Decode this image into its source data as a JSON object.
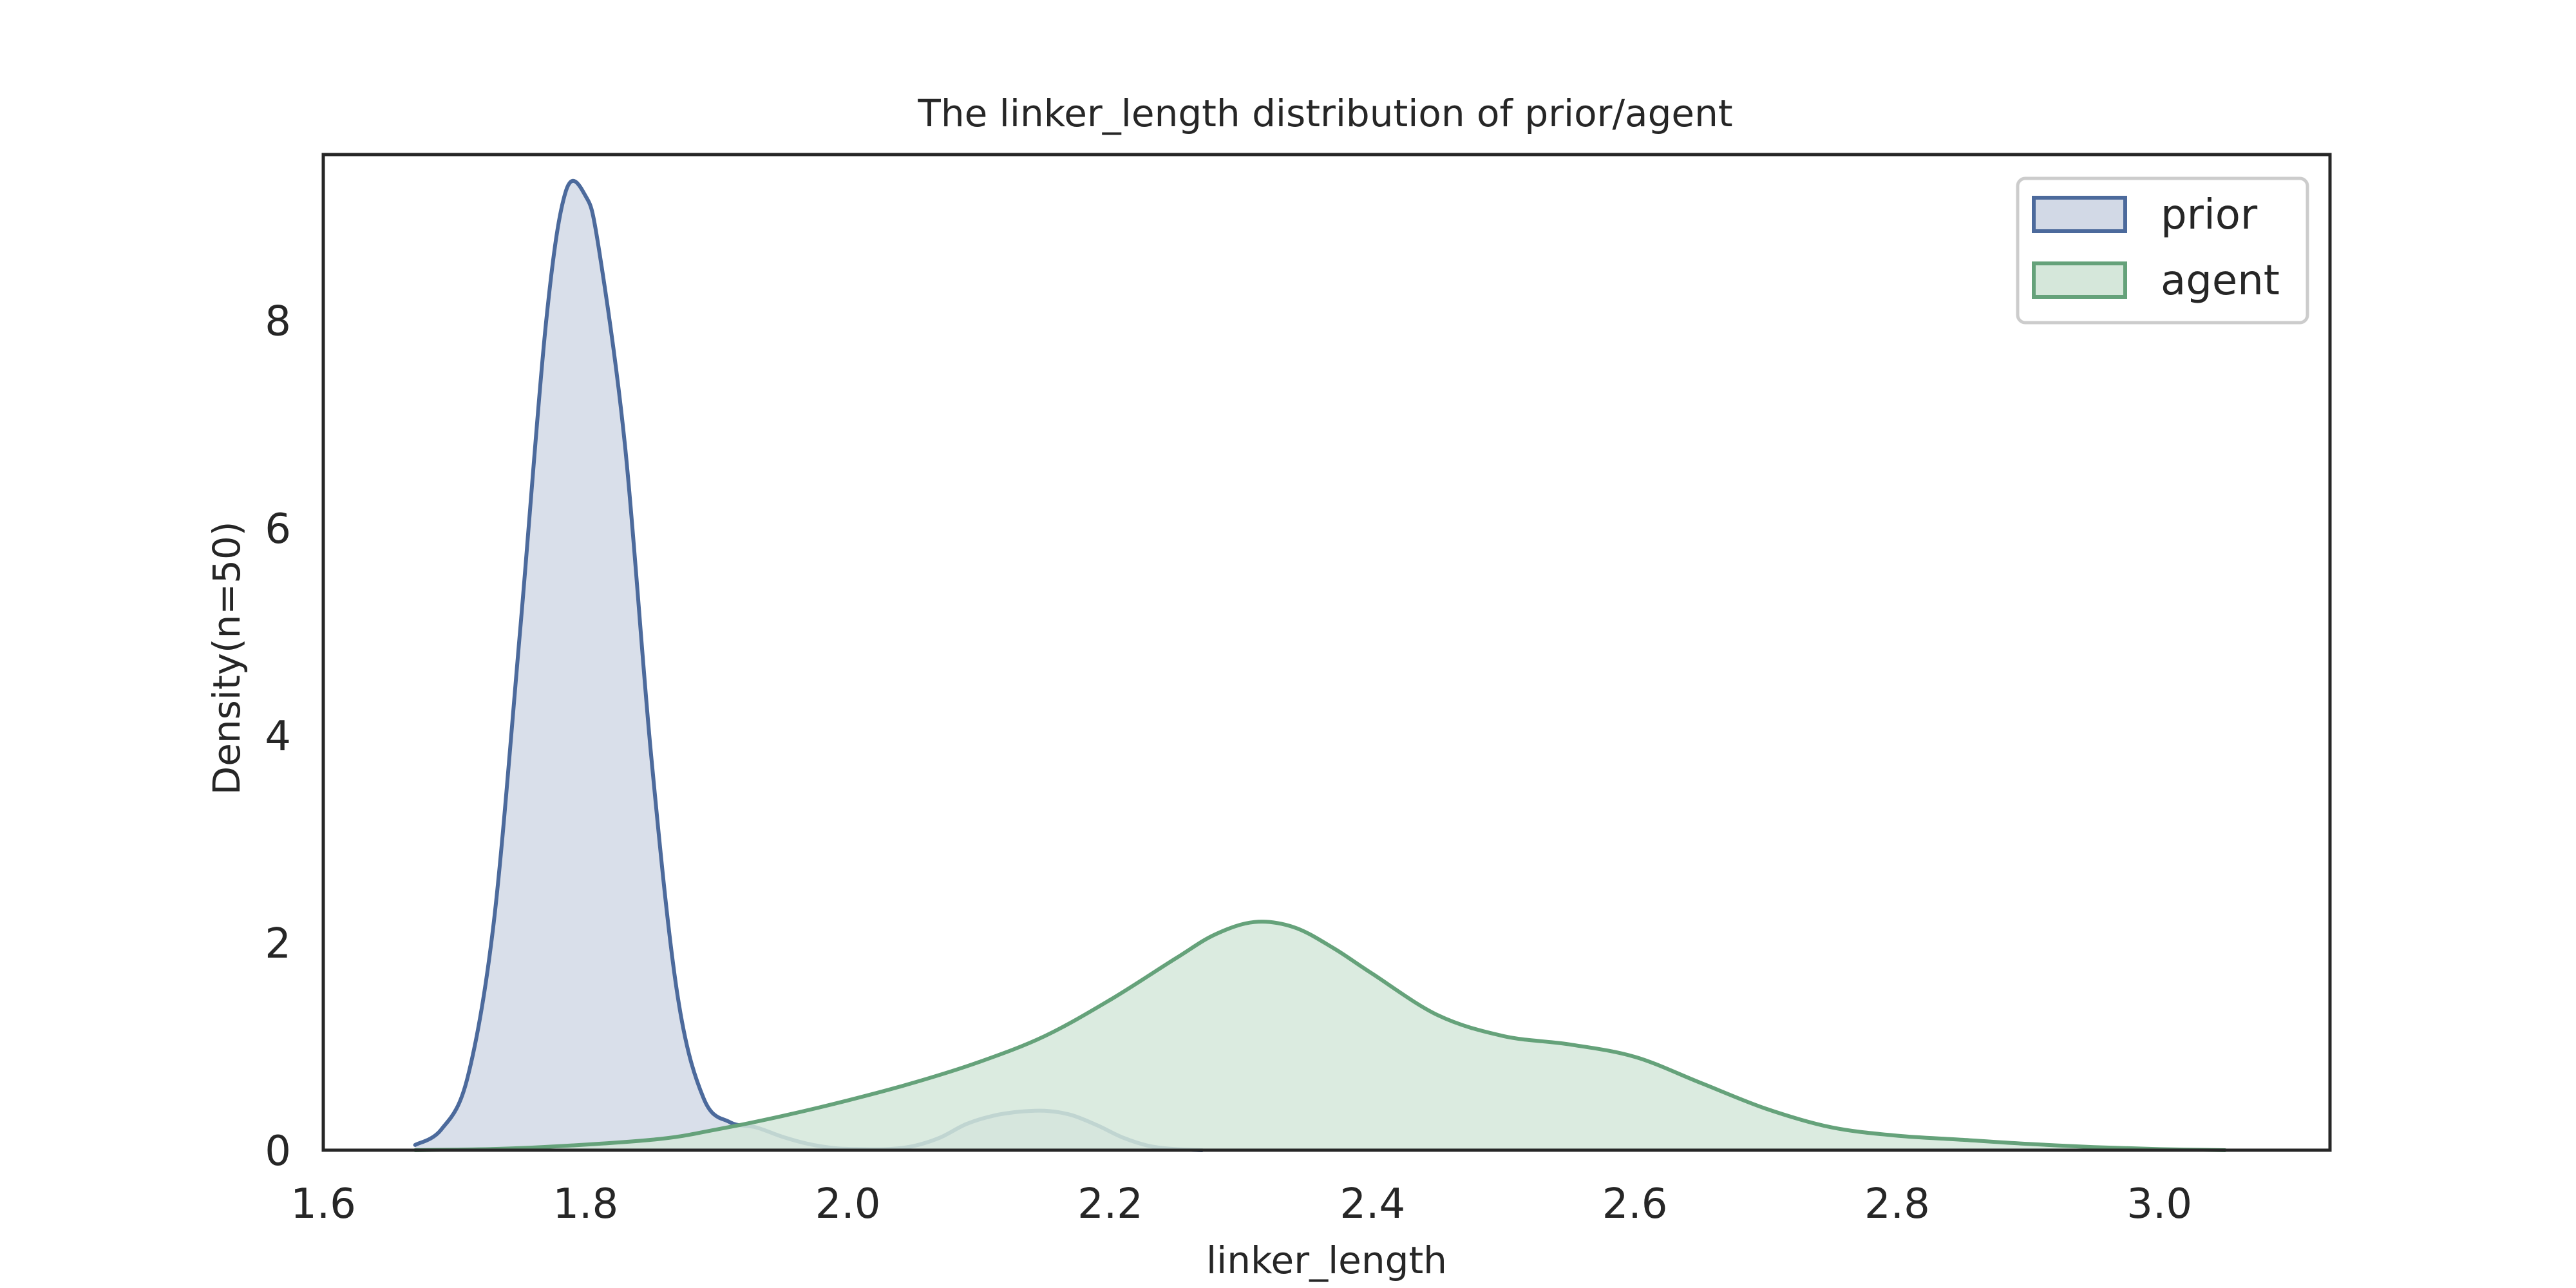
{
  "chart_data": {
    "type": "area",
    "title": "The linker_length distribution of prior/agent",
    "xlabel": "linker_length",
    "ylabel": "Density(n=50)",
    "xlim": [
      1.6,
      3.13
    ],
    "ylim": [
      0,
      9.6
    ],
    "xticks": [
      1.6,
      1.8,
      2.0,
      2.2,
      2.4,
      2.6,
      2.8,
      3.0
    ],
    "xtick_labels": [
      "1.6",
      "1.8",
      "2.0",
      "2.2",
      "2.4",
      "2.6",
      "2.8",
      "3.0"
    ],
    "yticks": [
      0,
      2,
      4,
      6,
      8
    ],
    "ytick_labels": [
      "0",
      "2",
      "4",
      "6",
      "8"
    ],
    "grid": false,
    "legend_position": "top-right",
    "series": [
      {
        "name": "prior",
        "color": "#4c6a9c",
        "fill": "#d2d9e6",
        "points": [
          [
            1.67,
            0.05
          ],
          [
            1.69,
            0.2
          ],
          [
            1.71,
            0.7
          ],
          [
            1.73,
            2.2
          ],
          [
            1.75,
            5.0
          ],
          [
            1.77,
            8.0
          ],
          [
            1.785,
            9.25
          ],
          [
            1.8,
            9.2
          ],
          [
            1.81,
            8.7
          ],
          [
            1.83,
            6.8
          ],
          [
            1.85,
            3.8
          ],
          [
            1.87,
            1.5
          ],
          [
            1.89,
            0.5
          ],
          [
            1.91,
            0.27
          ],
          [
            1.93,
            0.22
          ],
          [
            1.95,
            0.13
          ],
          [
            1.97,
            0.06
          ],
          [
            1.99,
            0.02
          ],
          [
            2.01,
            0.01
          ],
          [
            2.03,
            0.01
          ],
          [
            2.05,
            0.04
          ],
          [
            2.07,
            0.12
          ],
          [
            2.09,
            0.25
          ],
          [
            2.11,
            0.33
          ],
          [
            2.13,
            0.37
          ],
          [
            2.15,
            0.38
          ],
          [
            2.17,
            0.34
          ],
          [
            2.19,
            0.24
          ],
          [
            2.21,
            0.12
          ],
          [
            2.23,
            0.04
          ],
          [
            2.25,
            0.01
          ],
          [
            2.27,
            0.0
          ]
        ]
      },
      {
        "name": "agent",
        "color": "#65a27a",
        "fill": "#d5e7da",
        "points": [
          [
            1.67,
            0.0
          ],
          [
            1.75,
            0.02
          ],
          [
            1.85,
            0.1
          ],
          [
            1.9,
            0.2
          ],
          [
            1.95,
            0.33
          ],
          [
            2.0,
            0.48
          ],
          [
            2.05,
            0.65
          ],
          [
            2.1,
            0.85
          ],
          [
            2.15,
            1.1
          ],
          [
            2.2,
            1.45
          ],
          [
            2.25,
            1.85
          ],
          [
            2.28,
            2.08
          ],
          [
            2.31,
            2.2
          ],
          [
            2.34,
            2.15
          ],
          [
            2.37,
            1.95
          ],
          [
            2.4,
            1.7
          ],
          [
            2.45,
            1.3
          ],
          [
            2.5,
            1.1
          ],
          [
            2.55,
            1.02
          ],
          [
            2.6,
            0.9
          ],
          [
            2.65,
            0.65
          ],
          [
            2.7,
            0.4
          ],
          [
            2.75,
            0.22
          ],
          [
            2.8,
            0.14
          ],
          [
            2.85,
            0.1
          ],
          [
            2.9,
            0.06
          ],
          [
            2.95,
            0.03
          ],
          [
            3.0,
            0.01
          ],
          [
            3.05,
            0.0
          ]
        ]
      }
    ]
  }
}
